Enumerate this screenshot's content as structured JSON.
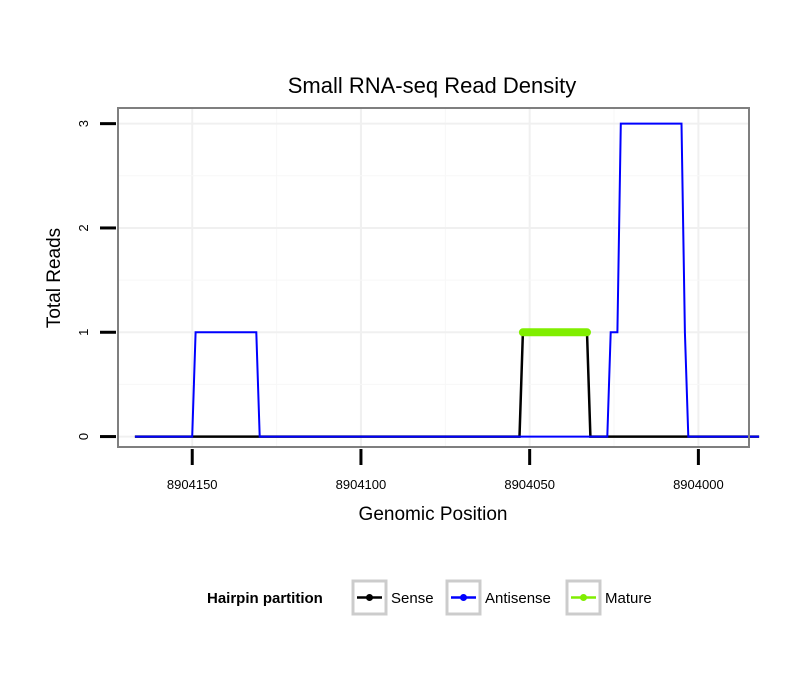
{
  "chart_data": {
    "type": "line",
    "title": "Small RNA-seq Read Density",
    "xlabel": "Genomic Position",
    "ylabel": "Total Reads",
    "xlim": [
      8904172,
      8903985
    ],
    "x_reversed": true,
    "ylim": [
      -0.1,
      3.15
    ],
    "xticks": [
      8904150,
      8904100,
      8904050,
      8904000
    ],
    "xtick_labels": [
      "8904150",
      "8904100",
      "8904050",
      "8904000"
    ],
    "yticks": [
      0,
      1,
      2,
      3
    ],
    "ytick_labels": [
      "0",
      "1",
      "2",
      "3"
    ],
    "grid": true,
    "legend": {
      "title": "Hairpin partition",
      "position": "bottom",
      "entries": [
        "Sense",
        "Antisense",
        "Mature"
      ]
    },
    "series": [
      {
        "name": "Sense",
        "color": "#000000",
        "points": [
          [
            8904167,
            0
          ],
          [
            8904053,
            0
          ],
          [
            8904052,
            1
          ],
          [
            8904033,
            1
          ],
          [
            8904032,
            0
          ],
          [
            8903982,
            0
          ]
        ]
      },
      {
        "name": "Antisense",
        "color": "#0000ff",
        "points": [
          [
            8904167,
            0
          ],
          [
            8904150,
            0
          ],
          [
            8904149,
            1
          ],
          [
            8904131,
            1
          ],
          [
            8904130,
            0
          ],
          [
            8904032,
            0
          ],
          [
            8904027,
            0
          ],
          [
            8904026,
            1
          ],
          [
            8904024,
            1
          ],
          [
            8904023,
            3
          ],
          [
            8904005,
            3
          ],
          [
            8904004,
            1
          ],
          [
            8904003,
            0
          ],
          [
            8903982,
            0
          ]
        ]
      },
      {
        "name": "Mature",
        "color": "#80ee00",
        "points": [
          [
            8904052,
            1
          ],
          [
            8904033,
            1
          ]
        ]
      }
    ]
  }
}
